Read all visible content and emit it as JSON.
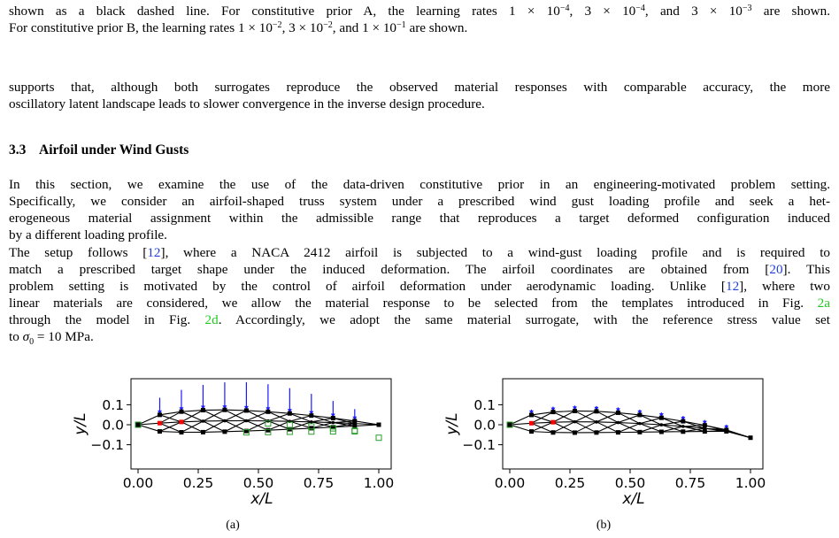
{
  "top_text": {
    "line1_a": "shown as a black dashed line. For constitutive prior A, the learning rates 1 × 10",
    "line1_e1": "−4",
    "line1_b": ", 3 × 10",
    "line1_e2": "−4",
    "line1_c": ", and 3 × 10",
    "line1_e3": "−3",
    "line1_d": " are shown.",
    "line2_a": "For constitutive prior B, the learning rates 1 × 10",
    "line2_e1": "−2",
    "line2_b": ", 3 × 10",
    "line2_e2": "−2",
    "line2_c": ", and 1 × 10",
    "line2_e3": "−1",
    "line2_d": " are shown."
  },
  "para1": {
    "line1": "supports that, although both surrogates reproduce the observed material responses with comparable accuracy, the more",
    "line2": "oscillatory latent landscape leads to slower convergence in the inverse design procedure."
  },
  "section": {
    "number": "3.3",
    "title": "Airfoil under Wind Gusts"
  },
  "para2": {
    "line1": "In this section, we examine the use of the data-driven constitutive prior in an engineering-motivated problem setting.",
    "line2": "Specifically, we consider an airfoil-shaped truss system under a prescribed wind gust loading profile and seek a het-",
    "line3": "erogeneous material assignment within the admissible range that reproduces a target deformed configuration induced",
    "line4": "by a different loading profile."
  },
  "para3": {
    "l1a": "The setup follows [",
    "ref12": "12",
    "l1b": "], where a NACA 2412 airfoil is subjected to a wind-gust loading profile and is required to",
    "l2a": "match a prescribed target shape under the induced deformation. The airfoil coordinates are obtained from [",
    "ref20": "20",
    "l2b": "]. This",
    "l3a": "problem setting is motivated by the control of airfoil deformation under aerodynamic loading. Unlike [",
    "l3b": "], where two",
    "l4a": "linear materials are considered, we allow the material response to be selected from the templates introduced in Fig. ",
    "fig2a": "2a",
    "l5a": "through the model in Fig. ",
    "fig2d": "2d",
    "l5b": ". Accordingly, we adopt the same material surrogate, with the reference stress value set",
    "l6a": "to ",
    "sigma": "σ",
    "sigma_sub": "0",
    "l6b": " = 10 MPa."
  },
  "figures": [
    {
      "label": "(a)",
      "xlabel": "x/L",
      "ylabel": "y/L",
      "xticks": [
        "0.00",
        "0.25",
        "0.50",
        "0.75",
        "1.00"
      ],
      "yticks": [
        "0.1",
        "0.0",
        "−0.1"
      ]
    },
    {
      "label": "(b)",
      "xlabel": "x/L",
      "ylabel": "y/L",
      "xticks": [
        "0.00",
        "0.25",
        "0.50",
        "0.75",
        "1.00"
      ],
      "yticks": [
        "0.1",
        "0.0",
        "−0.1"
      ]
    }
  ],
  "colors": {
    "reference_link": "#1f3fd6",
    "figure_link": "#23c823",
    "load_arrow": "#1a1aff",
    "fixed_node": "#ff0000",
    "target_marker": "#2ca02c"
  }
}
